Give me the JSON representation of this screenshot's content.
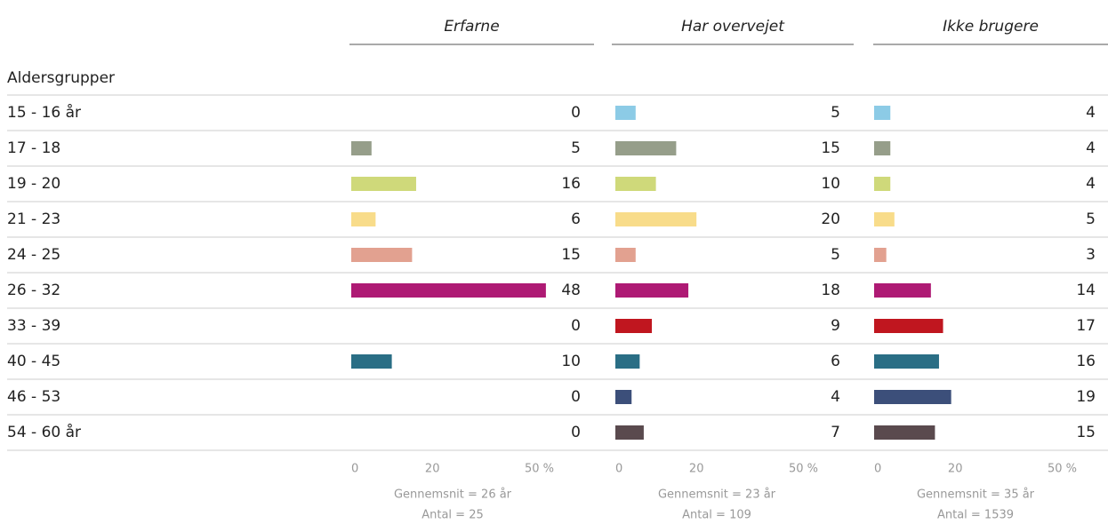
{
  "row_header": "Aldersgrupper",
  "categories": [
    "15 - 16 år",
    "17 - 18",
    "19 - 20",
    "21 - 23",
    "24 - 25",
    "26 - 32",
    "33 - 39",
    "40 - 45",
    "46 - 53",
    "54 - 60 år"
  ],
  "colors": [
    "#8ccbe6",
    "#969e8a",
    "#cfd97a",
    "#f8dc8a",
    "#e2a190",
    "#ae1a74",
    "#c0161f",
    "#2a6e85",
    "#3c4f7a",
    "#5a4a4e"
  ],
  "chart_data": [
    {
      "type": "bar",
      "title": "Erfarne",
      "values": [
        0,
        5,
        16,
        6,
        15,
        48,
        0,
        10,
        0,
        0
      ],
      "xlim": [
        0,
        50
      ],
      "xticks": [
        0,
        20,
        {
          "value": 50,
          "label": "50 %"
        }
      ],
      "notes": [
        "Gennemsnit = 26 år",
        "Antal = 25"
      ]
    },
    {
      "type": "bar",
      "title": "Har overvejet",
      "values": [
        5,
        15,
        10,
        20,
        5,
        18,
        9,
        6,
        4,
        7
      ],
      "xlim": [
        0,
        50
      ],
      "xticks": [
        0,
        20,
        {
          "value": 50,
          "label": "50 %"
        }
      ],
      "notes": [
        "Gennemsnit = 23 år",
        "Antal = 109"
      ]
    },
    {
      "type": "bar",
      "title": "Ikke brugere",
      "values": [
        4,
        4,
        4,
        5,
        3,
        14,
        17,
        16,
        19,
        15
      ],
      "xlim": [
        0,
        50
      ],
      "xticks": [
        0,
        20,
        {
          "value": 50,
          "label": "50 %"
        }
      ],
      "notes": [
        "Gennemsnit = 35 år",
        "Antal = 1539"
      ]
    }
  ]
}
